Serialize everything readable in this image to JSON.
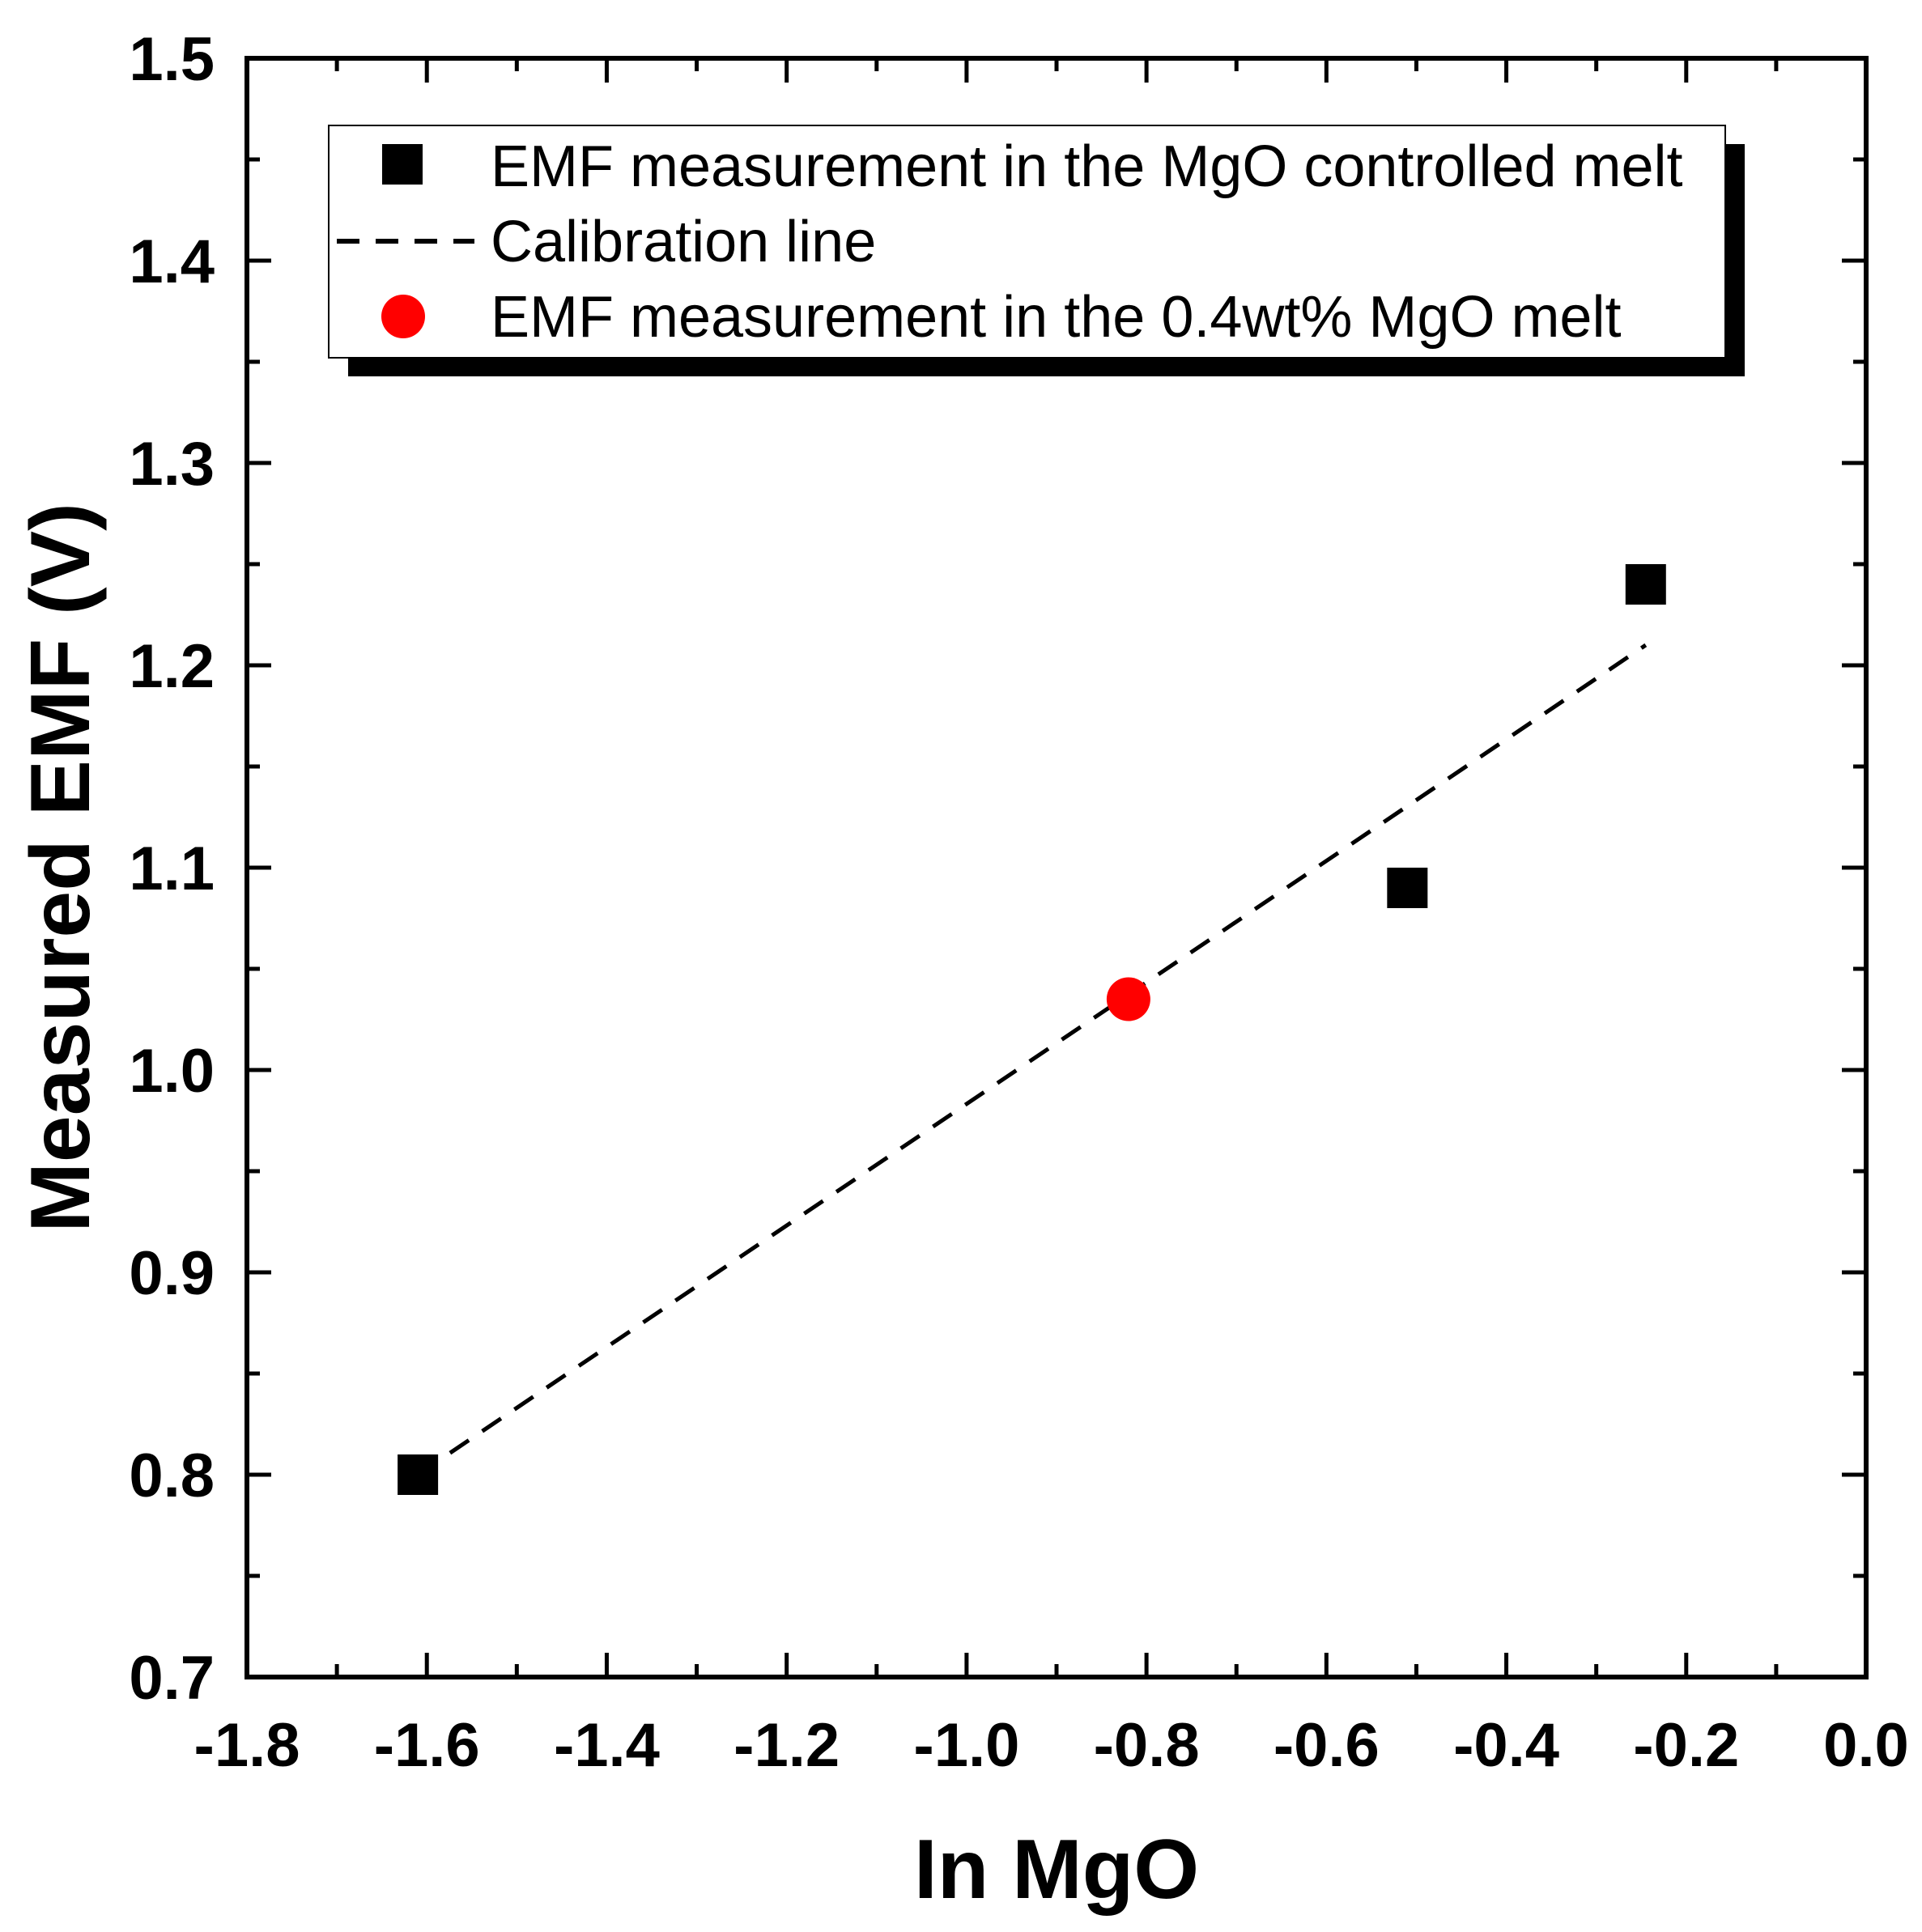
{
  "chart_data": {
    "type": "scatter",
    "title": "",
    "xlabel": "In MgO",
    "ylabel": "Measured EMF (V)",
    "xlim": [
      -1.8,
      0.0
    ],
    "ylim": [
      0.7,
      1.5
    ],
    "x_ticks": [
      -1.8,
      -1.6,
      -1.4,
      -1.2,
      -1.0,
      -0.8,
      -0.6,
      -0.4,
      -0.2,
      0.0
    ],
    "x_tick_labels": [
      "-1.8",
      "-1.6",
      "-1.4",
      "-1.2",
      "-1.0",
      "-0.8",
      "-0.6",
      "-0.4",
      "-0.2",
      "0.0"
    ],
    "y_ticks": [
      0.7,
      0.8,
      0.9,
      1.0,
      1.1,
      1.2,
      1.3,
      1.4,
      1.5
    ],
    "y_tick_labels": [
      "0.7",
      "0.8",
      "0.9",
      "1.0",
      "1.1",
      "1.2",
      "1.3",
      "1.4",
      "1.5"
    ],
    "grid": false,
    "legend_position": "top",
    "series": [
      {
        "name": "EMF measurement in the MgO controlled melt",
        "kind": "scatter",
        "marker": "square",
        "color": "#000000",
        "x": [
          -1.61,
          -0.51,
          -0.245
        ],
        "y": [
          0.8,
          1.09,
          1.24
        ]
      },
      {
        "name": "Calibration line",
        "kind": "line",
        "style": "dashed",
        "color": "#000000",
        "x": [
          -1.61,
          -0.245
        ],
        "y": [
          0.8,
          1.21
        ]
      },
      {
        "name": "EMF measurement in the 0.4wt% MgO melt",
        "kind": "scatter",
        "marker": "circle",
        "color": "#ff0000",
        "x": [
          -0.82
        ],
        "y": [
          1.035
        ]
      }
    ]
  }
}
